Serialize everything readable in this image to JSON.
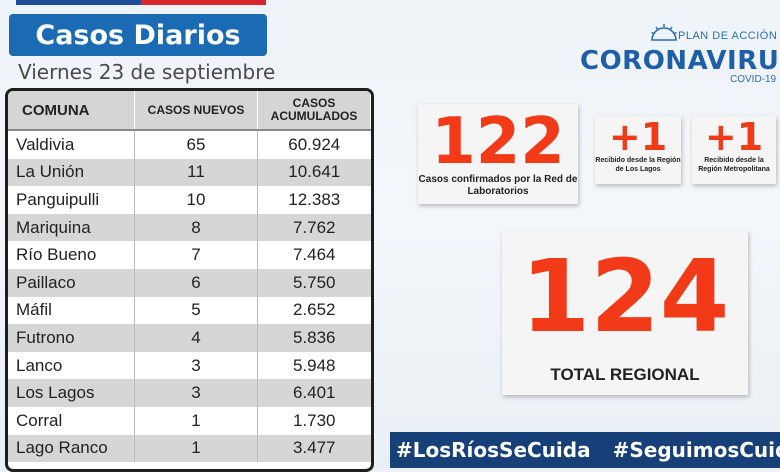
{
  "title": "Casos Diarios",
  "date": "Viernes 23 de septiembre",
  "table": {
    "headers": [
      "COMUNA",
      "CASOS NUEVOS",
      "CASOS ACUMULADOS"
    ],
    "rows": [
      [
        "Valdivia",
        "65",
        "60.924"
      ],
      [
        "La Unión",
        "11",
        "10.641"
      ],
      [
        "Panguipulli",
        "10",
        "12.383"
      ],
      [
        "Mariquina",
        "8",
        "7.762"
      ],
      [
        "Río Bueno",
        "7",
        "7.464"
      ],
      [
        "Paillaco",
        "6",
        "5.750"
      ],
      [
        "Máfil",
        "5",
        "2.652"
      ],
      [
        "Futrono",
        "4",
        "5.836"
      ],
      [
        "Lanco",
        "3",
        "5.948"
      ],
      [
        "Los Lagos",
        "3",
        "6.401"
      ],
      [
        "Corral",
        "1",
        "1.730"
      ],
      [
        "Lago Ranco",
        "1",
        "3.477"
      ]
    ]
  },
  "logo": {
    "plan": "PLAN DE ACCIÓN",
    "corona": "CORONAVIRUS",
    "covid": "COVID-19"
  },
  "stats": {
    "lab_value": "122",
    "lab_label": "Casos confirmados por la Red de Laboratorios",
    "lagos_value": "+1",
    "lagos_label": "Recibido desde la Región de Los Lagos",
    "metro_value": "+1",
    "metro_label": "Recibido desde la Región Metropolitana",
    "total_value": "124",
    "total_label": "TOTAL REGIONAL"
  },
  "hashtags": [
    "#LosRíosSeCuida",
    "#SeguimosCuidándonos"
  ],
  "colors": {
    "accent_blue": "#1a6bb4",
    "number_red": "#f23a18",
    "banner_navy": "#173f78"
  }
}
